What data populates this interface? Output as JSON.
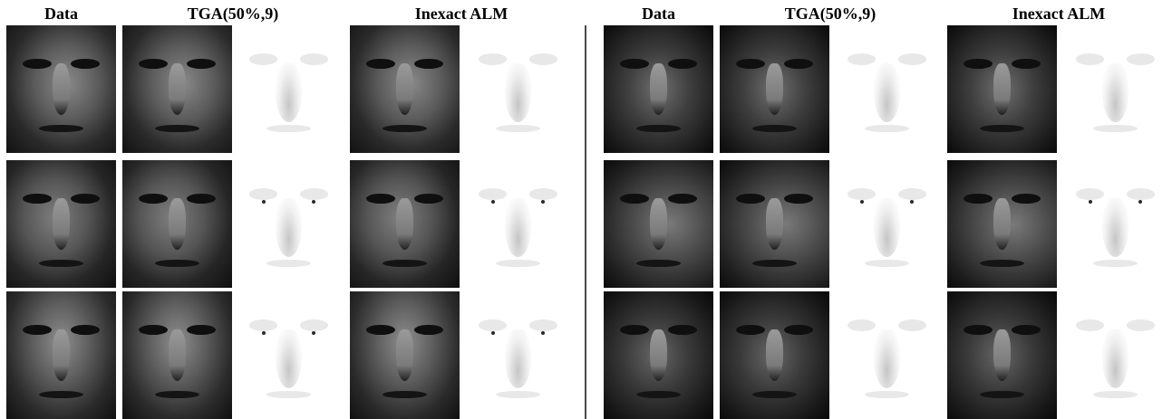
{
  "left_panel": {
    "headers": {
      "data": "Data",
      "tga": "TGA(50%,9)",
      "alm": "Inexact ALM"
    }
  },
  "right_panel": {
    "headers": {
      "data": "Data",
      "tga": "TGA(50%,9)",
      "alm": "Inexact ALM"
    }
  }
}
